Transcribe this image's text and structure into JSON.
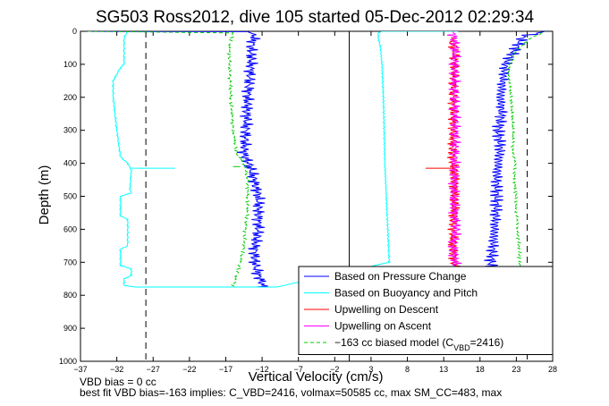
{
  "chart_data": {
    "type": "line",
    "title": "SG503 Ross2012, dive 105 started 05-Dec-2012 02:29:34",
    "xlabel": "Vertical Velocity (cm/s)",
    "ylabel": "Depth (m)",
    "xlim": [
      -37,
      28
    ],
    "ylim": [
      1000,
      0
    ],
    "y_reversed": true,
    "xticks": [
      -37,
      -32,
      -27,
      -22,
      -17,
      -12,
      -7,
      -2,
      3,
      8,
      13,
      18,
      23,
      28
    ],
    "yticks": [
      0,
      100,
      200,
      300,
      400,
      500,
      600,
      700,
      800,
      900,
      1000
    ],
    "dashed_vlines": [
      -28,
      24.5
    ],
    "solid_vline": 0,
    "legend_location": "bottom-right",
    "series": [
      {
        "name": "Based on Pressure Change",
        "color": "#0000ff",
        "style": "solid",
        "group": "descent",
        "x": [
          -36,
          -14,
          -13,
          -13.5,
          -13.5,
          -14,
          -14.2,
          -14.5,
          -13.5,
          -12.5,
          -12.5,
          -12.5,
          -13,
          -13,
          -12.5,
          -12,
          -12
        ],
        "y": [
          0,
          1,
          10,
          50,
          100,
          200,
          300,
          370,
          420,
          500,
          550,
          600,
          650,
          700,
          740,
          760,
          775
        ]
      },
      {
        "name": "Based on Pressure Change",
        "color": "#0000ff",
        "style": "solid",
        "group": "ascent",
        "x": [
          19.5,
          19.5,
          19.8,
          20,
          20.2,
          20.3,
          20.3,
          20.5,
          20.8,
          20.5,
          21,
          20.8,
          21.5,
          23,
          24,
          27
        ],
        "y": [
          775,
          700,
          650,
          600,
          550,
          500,
          450,
          400,
          350,
          300,
          250,
          200,
          100,
          50,
          15,
          0
        ]
      },
      {
        "name": "Based on Buoyancy and Pitch",
        "color": "#00ffff",
        "style": "solid",
        "group": "descent",
        "x": [
          -30.5,
          -31,
          -31,
          -31.5,
          -32.5,
          -32.5,
          -32,
          -31.5,
          -30.5,
          -30,
          -30.2,
          -30,
          -31.5,
          -31.5,
          -30.5,
          -30.5,
          -31.5,
          -31.5,
          -30,
          -30,
          -31,
          -31,
          -29.5
        ],
        "y": [
          0,
          20,
          100,
          110,
          150,
          200,
          300,
          380,
          400,
          420,
          480,
          490,
          500,
          560,
          570,
          650,
          660,
          710,
          720,
          740,
          750,
          770,
          775
        ]
      },
      {
        "name": "Based on Buoyancy and Pitch",
        "color": "#00ffff",
        "style": "solid",
        "group": "ascent",
        "x": [
          -29.5,
          -10,
          5.5,
          5.3,
          5.1,
          4.9,
          4.8,
          4.7,
          4.6,
          4.5,
          4.3,
          4,
          4,
          4.5,
          15
        ],
        "y": [
          775,
          775,
          700,
          600,
          500,
          400,
          300,
          200,
          150,
          100,
          50,
          20,
          5,
          0,
          0
        ]
      },
      {
        "name": "Upwelling on Descent",
        "color": "#ff0000",
        "style": "solid",
        "x": [
          14,
          14.5,
          14.5,
          14.3,
          14.3,
          14.2,
          14.3,
          14.5,
          14.5,
          14.4,
          14.3,
          14.2,
          14.5,
          14.7
        ],
        "y": [
          20,
          60,
          100,
          200,
          300,
          350,
          400,
          450,
          500,
          550,
          600,
          650,
          700,
          740
        ]
      },
      {
        "name": "Upwelling on Ascent",
        "color": "#ff00ff",
        "style": "solid",
        "x": [
          14.3,
          14.6,
          14.5,
          14.5,
          14.6,
          14.5,
          14.5,
          14.4,
          14.5,
          14.7,
          14.3,
          14.6,
          14.8,
          15
        ],
        "y": [
          0,
          50,
          100,
          200,
          300,
          400,
          450,
          500,
          550,
          600,
          650,
          700,
          750,
          775
        ]
      },
      {
        "name": "−163 cc biased model (C_VBD=2416)",
        "color": "#00cc00",
        "style": "dashed",
        "group": "descent",
        "x": [
          -36,
          -16,
          -16.2,
          -16.5,
          -16.5,
          -16.3,
          -16,
          -15.5,
          -14.5,
          -14,
          -14,
          -14,
          -14.3,
          -14.5,
          -15,
          -15.5,
          -16
        ],
        "y": [
          0,
          5,
          20,
          50,
          100,
          200,
          300,
          370,
          400,
          450,
          500,
          550,
          600,
          650,
          700,
          740,
          775
        ]
      },
      {
        "name": "−163 cc biased model (C_VBD=2416)",
        "color": "#00cc00",
        "style": "dashed",
        "group": "ascent",
        "x": [
          23.5,
          23.5,
          23.3,
          23.2,
          23,
          23,
          22.8,
          22.8,
          22.5,
          22.5,
          22.2,
          22,
          22,
          23,
          25,
          27
        ],
        "y": [
          775,
          700,
          650,
          600,
          550,
          500,
          450,
          400,
          350,
          300,
          200,
          150,
          100,
          60,
          20,
          0
        ]
      }
    ],
    "spikes": [
      {
        "color": "#00ffff",
        "x": [
          -30,
          -24
        ],
        "y": [
          415,
          415
        ]
      },
      {
        "color": "#ff0000",
        "x": [
          10.5,
          14.5
        ],
        "y": [
          415,
          415
        ]
      },
      {
        "color": "#00cc00",
        "x": [
          -16,
          -15
        ],
        "y": [
          410,
          410
        ]
      }
    ],
    "legend": [
      {
        "label": "Based on Pressure Change",
        "color": "#0000ff",
        "style": "solid"
      },
      {
        "label": "Based on Buoyancy and Pitch",
        "color": "#00ffff",
        "style": "solid"
      },
      {
        "label": "Upwelling on Descent",
        "color": "#ff0000",
        "style": "solid"
      },
      {
        "label": "Upwelling on Ascent",
        "color": "#ff00ff",
        "style": "solid"
      },
      {
        "label": "−163 cc biased model (C",
        "sub": "VBD",
        "tail": "=2416)",
        "color": "#00cc00",
        "style": "dashed"
      }
    ]
  },
  "footer": {
    "line1": "VBD bias = 0 cc",
    "line2": "best fit VBD bias=-163 implies: C_VBD=2416, volmax=50585 cc, max SM_CC=483, max"
  }
}
